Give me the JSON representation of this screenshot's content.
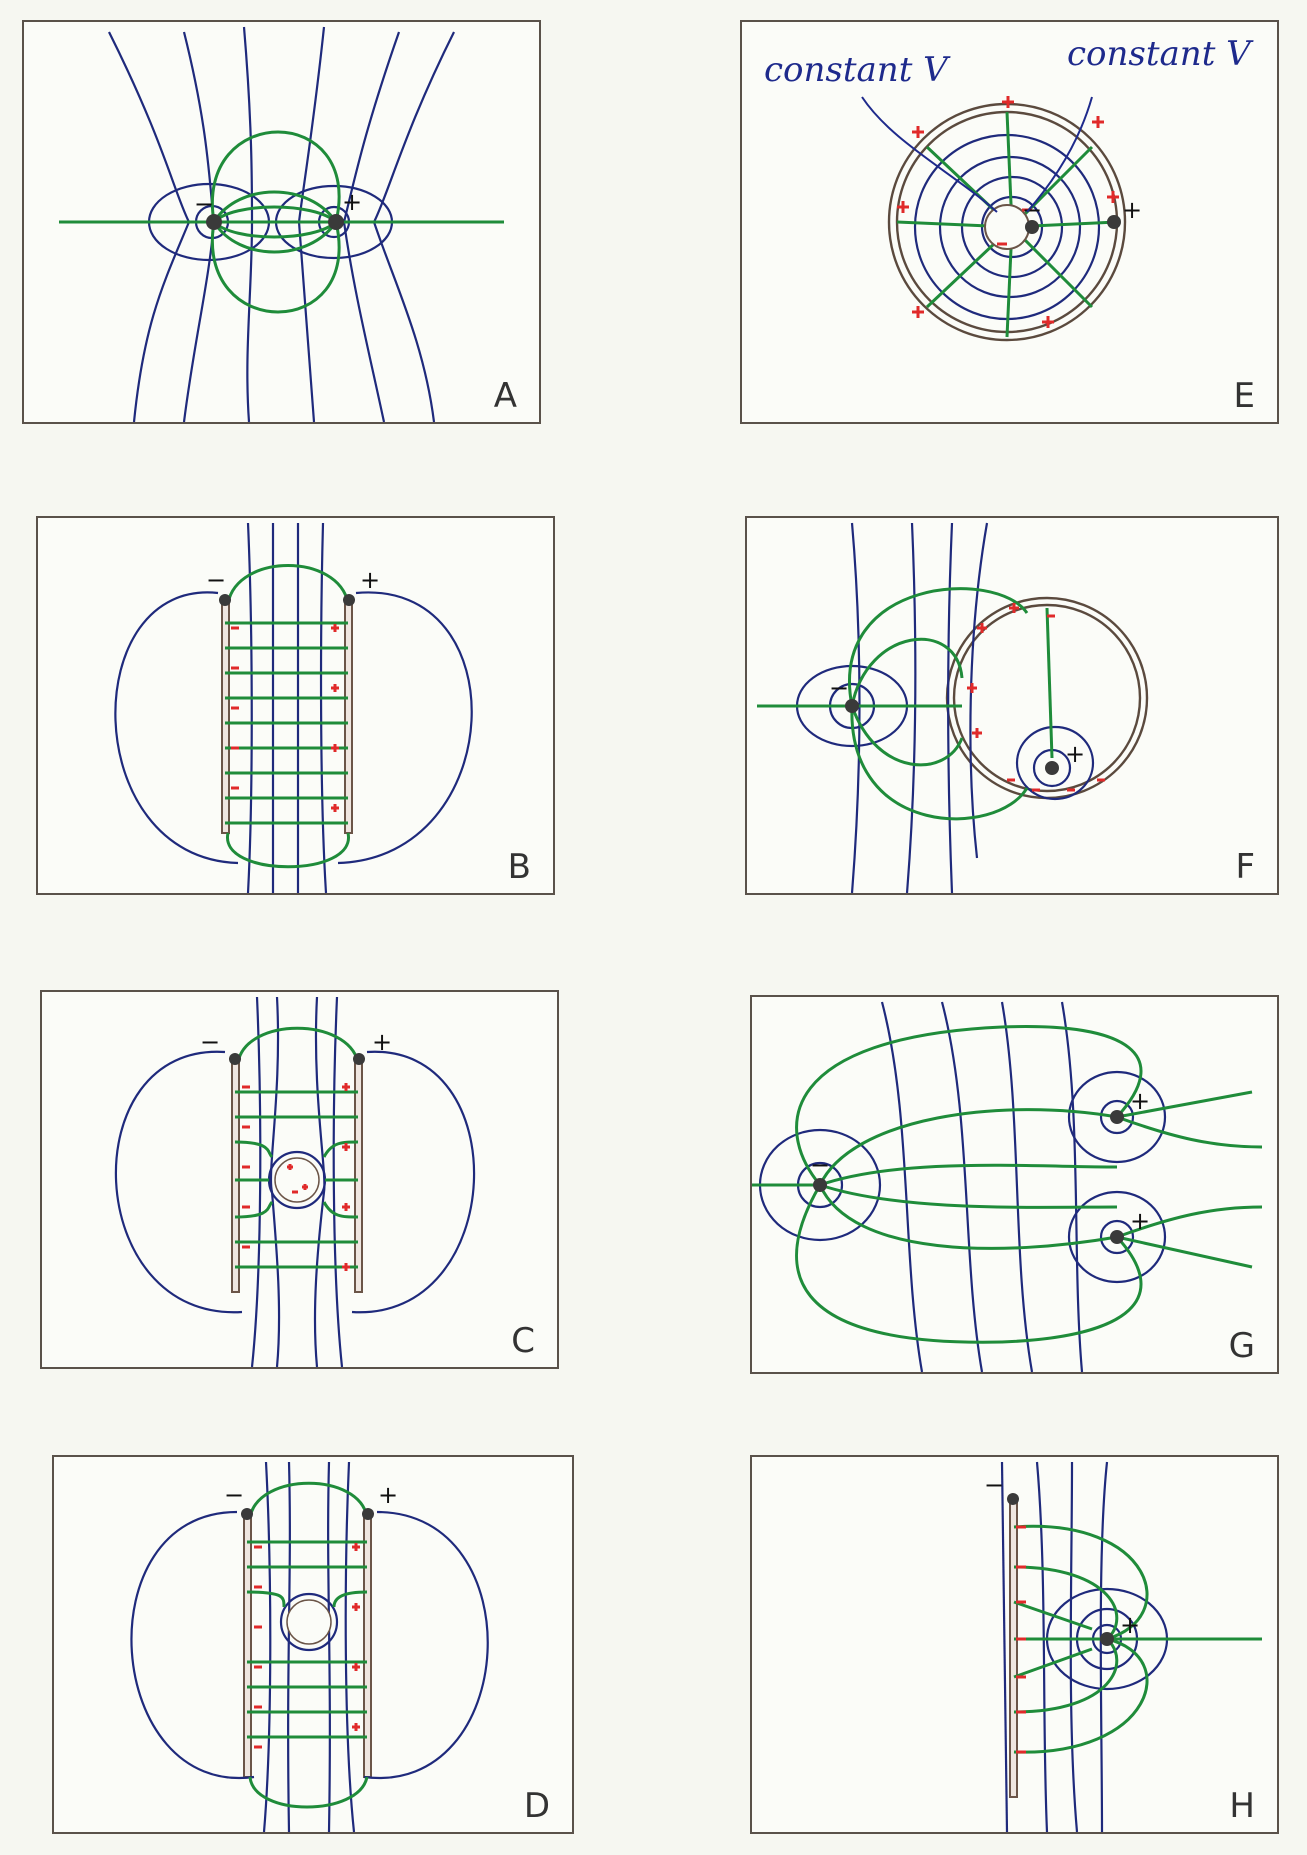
{
  "panels": {
    "A": {
      "letter": "A"
    },
    "B": {
      "letter": "B"
    },
    "C": {
      "letter": "C"
    },
    "D": {
      "letter": "D"
    },
    "E": {
      "letter": "E",
      "annotations": [
        "constant V",
        "constant V"
      ]
    },
    "F": {
      "letter": "F"
    },
    "G": {
      "letter": "G"
    },
    "H": {
      "letter": "H"
    }
  },
  "signs": {
    "plus": "+",
    "minus": "−"
  },
  "colors": {
    "equipotential": "#1f2a7c",
    "field_line": "#1f8c3a",
    "induced_charge": "#e02a2a",
    "electrode": "#3a3a3a"
  }
}
